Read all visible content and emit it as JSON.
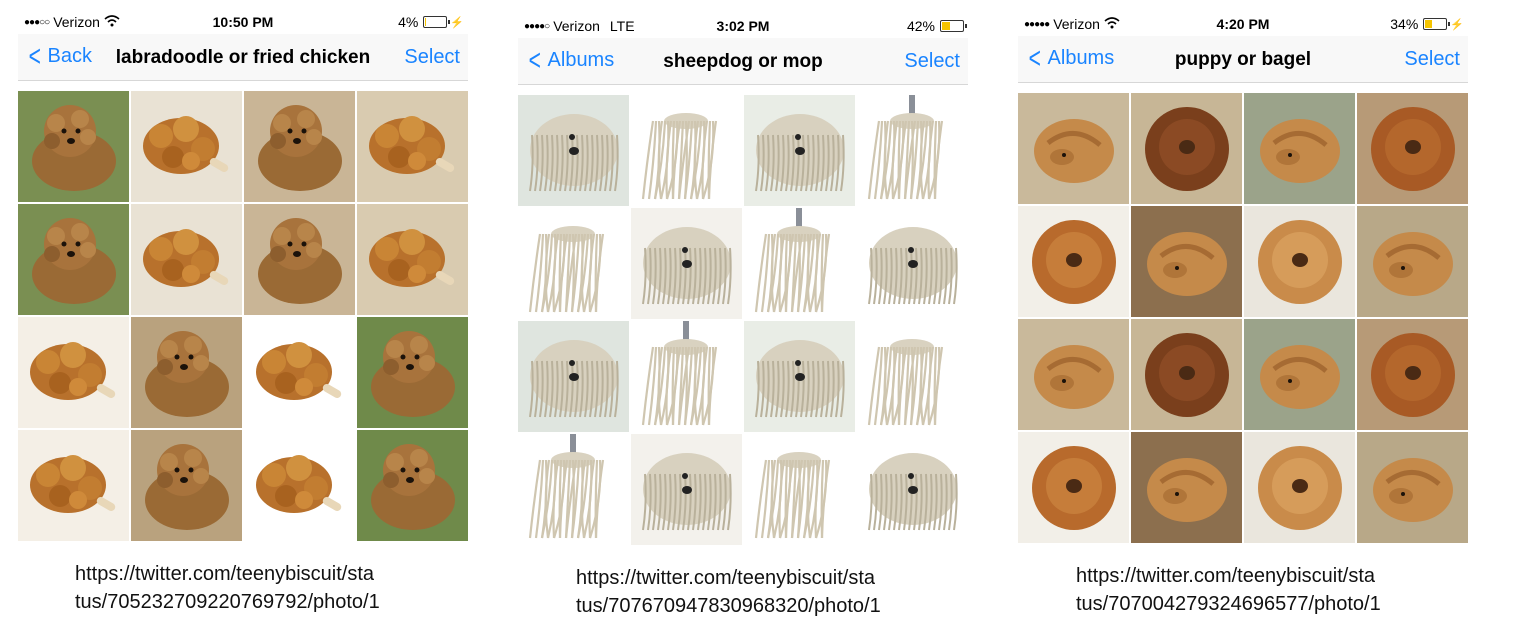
{
  "panels": [
    {
      "carrier": "Verizon",
      "network": "wifi",
      "time": "10:50 PM",
      "battery": "4%",
      "battery_level": 0.04,
      "back_label": "Back",
      "title": "labradoodle or fried chicken",
      "select_label": "Select",
      "caption_line1": "https://twitter.com/teenybiscuit/sta",
      "caption_line2": "tus/705232709220769792/photo/1",
      "tiles": [
        "labradoodle",
        "fried-chicken",
        "labradoodle",
        "fried-chicken",
        "labradoodle",
        "fried-chicken",
        "labradoodle",
        "fried-chicken",
        "fried-chicken",
        "labradoodle",
        "fried-chicken",
        "labradoodle",
        "fried-chicken",
        "labradoodle",
        "fried-chicken",
        "labradoodle"
      ]
    },
    {
      "carrier": "Verizon",
      "network": "LTE",
      "time": "3:02 PM",
      "battery": "42%",
      "battery_level": 0.42,
      "back_label": "Albums",
      "title": "sheepdog or mop",
      "select_label": "Select",
      "caption_line1": "https://twitter.com/teenybiscuit/sta",
      "caption_line2": "tus/707670947830968320/photo/1",
      "tiles": [
        "sheepdog",
        "mop",
        "sheepdog",
        "mop",
        "mop",
        "sheepdog",
        "mop",
        "sheepdog",
        "sheepdog",
        "mop",
        "sheepdog",
        "mop",
        "mop",
        "sheepdog",
        "mop",
        "sheepdog"
      ]
    },
    {
      "carrier": "Verizon",
      "network": "wifi",
      "time": "4:20 PM",
      "battery": "34%",
      "battery_level": 0.34,
      "back_label": "Albums",
      "title": "puppy or bagel",
      "select_label": "Select",
      "caption_line1": "https://twitter.com/teenybiscuit/sta",
      "caption_line2": "tus/707004279324696577/photo/1",
      "tiles": [
        "puppy",
        "bagel",
        "puppy",
        "bagel",
        "bagel",
        "puppy",
        "bagel",
        "puppy",
        "puppy",
        "bagel",
        "puppy",
        "bagel",
        "bagel",
        "puppy",
        "bagel",
        "puppy"
      ]
    }
  ]
}
